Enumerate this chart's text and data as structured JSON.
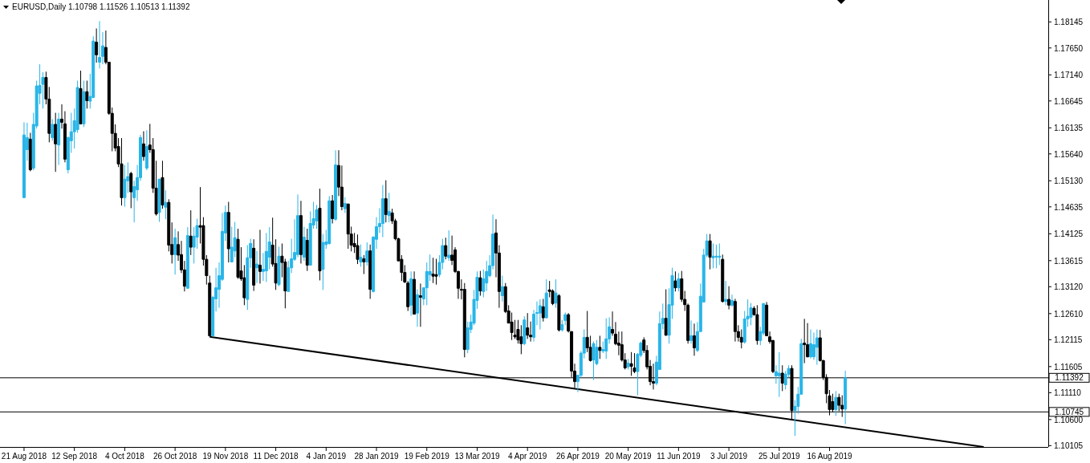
{
  "chart_data": {
    "type": "candlestick",
    "title": "EURUSD,Daily  1.10798 1.11526 1.10513 1.11392",
    "categories": [
      "21 Aug 2018",
      null,
      null,
      null,
      null,
      null,
      null,
      null,
      null,
      null,
      null,
      null,
      null,
      null,
      null,
      null,
      "12 Sep 2018",
      null,
      null,
      null,
      null,
      null,
      null,
      null,
      null,
      null,
      null,
      null,
      null,
      null,
      null,
      null,
      "4 Oct 2018",
      null,
      null,
      null,
      null,
      null,
      null,
      null,
      null,
      null,
      null,
      null,
      null,
      null,
      null,
      null,
      "26 Oct 2018",
      null,
      null,
      null,
      null,
      null,
      null,
      null,
      null,
      null,
      null,
      null,
      null,
      null,
      null,
      null,
      "19 Nov 2018",
      null,
      null,
      null,
      null,
      null,
      null,
      null,
      null,
      null,
      null,
      null,
      null,
      null,
      null,
      null,
      "11 Dec 2018",
      null,
      null,
      null,
      null,
      null,
      null,
      null,
      null,
      null,
      null,
      null,
      null,
      null,
      null,
      null,
      "4 Jan 2019",
      null,
      null,
      null,
      null,
      null,
      null,
      null,
      null,
      null,
      null,
      null,
      null,
      null,
      null,
      null,
      "28 Jan 2019",
      null,
      null,
      null,
      null,
      null,
      null,
      null,
      null,
      null,
      null,
      null,
      null,
      null,
      null,
      null,
      "19 Feb 2019",
      null,
      null,
      null,
      null,
      null,
      null,
      null,
      null,
      null,
      null,
      null,
      null,
      null,
      null,
      null,
      "13 Mar 2019",
      null,
      null,
      null,
      null,
      null,
      null,
      null,
      null,
      null,
      null,
      null,
      null,
      null,
      null,
      null,
      "4 Apr 2019",
      null,
      null,
      null,
      null,
      null,
      null,
      null,
      null,
      null,
      null,
      null,
      null,
      null,
      null,
      null,
      "26 Apr 2019",
      null,
      null,
      null,
      null,
      null,
      null,
      null,
      null,
      null,
      null,
      null,
      null,
      null,
      null,
      null,
      "20 May 2019",
      null,
      null,
      null,
      null,
      null,
      null,
      null,
      null,
      null,
      null,
      null,
      null,
      null,
      null,
      null,
      "11 Jun 2019",
      null,
      null,
      null,
      null,
      null,
      null,
      null,
      null,
      null,
      null,
      null,
      null,
      null,
      null,
      null,
      "3 Jul 2019",
      null,
      null,
      null,
      null,
      null,
      null,
      null,
      null,
      null,
      null,
      null,
      null,
      null,
      null,
      null,
      "25 Jul 2019",
      null,
      null,
      null,
      null,
      null,
      null,
      null,
      null,
      null,
      null,
      null,
      null,
      null,
      null,
      null,
      "16 Aug 2019",
      null,
      null,
      null,
      null,
      null,
      null,
      null,
      null,
      null,
      null,
      null,
      null,
      null,
      null,
      null,
      null,
      null,
      null,
      null,
      null,
      null,
      null,
      null,
      null,
      null,
      null,
      null,
      null,
      null,
      null,
      null,
      null,
      null,
      null,
      null,
      null,
      null,
      null,
      null,
      null,
      null,
      null,
      null,
      null,
      null,
      null,
      null,
      null,
      null,
      null,
      null,
      null,
      null,
      null,
      null,
      null,
      null,
      null,
      null,
      null,
      null,
      null,
      null,
      null,
      null,
      null,
      null,
      null,
      null
    ],
    "ohlc": [
      [
        1.1481,
        1.1624,
        1.1481,
        1.16
      ],
      [
        1.1572,
        1.1623,
        1.1551,
        1.1595
      ],
      [
        1.1592,
        1.1604,
        1.1531,
        1.1534
      ],
      [
        1.1537,
        1.1642,
        1.1533,
        1.162
      ],
      [
        1.1617,
        1.1703,
        1.1612,
        1.1693
      ],
      [
        1.1679,
        1.1734,
        1.1658,
        1.1694
      ],
      [
        1.1696,
        1.1719,
        1.165,
        1.1709
      ],
      [
        1.1709,
        1.172,
        1.1658,
        1.1668
      ],
      [
        1.1668,
        1.1691,
        1.1586,
        1.1603
      ],
      [
        1.1595,
        1.163,
        1.1589,
        1.162
      ],
      [
        1.162,
        1.1642,
        1.153,
        1.1583
      ],
      [
        1.1581,
        1.1642,
        1.1543,
        1.163
      ],
      [
        1.163,
        1.1658,
        1.1612,
        1.1624
      ],
      [
        1.1621,
        1.1645,
        1.1548,
        1.1554
      ],
      [
        1.1534,
        1.1597,
        1.1527,
        1.1595
      ],
      [
        1.1589,
        1.1642,
        1.1566,
        1.1606
      ],
      [
        1.1606,
        1.165,
        1.1574,
        1.1627
      ],
      [
        1.161,
        1.1703,
        1.1604,
        1.169
      ],
      [
        1.1688,
        1.1722,
        1.162,
        1.1621
      ],
      [
        1.1621,
        1.1703,
        1.1615,
        1.1682
      ],
      [
        1.1682,
        1.1703,
        1.165,
        1.1665
      ],
      [
        1.1664,
        1.1716,
        1.165,
        1.1673
      ],
      [
        1.1671,
        1.1787,
        1.167,
        1.1778
      ],
      [
        1.1776,
        1.1802,
        1.1737,
        1.1752
      ],
      [
        1.1738,
        1.1816,
        1.1726,
        1.1747
      ],
      [
        1.1749,
        1.1795,
        1.1734,
        1.1769
      ],
      [
        1.1766,
        1.1798,
        1.1734,
        1.1738
      ],
      [
        1.1738,
        1.1738,
        1.1638,
        1.1641
      ],
      [
        1.1641,
        1.1652,
        1.1569,
        1.1603
      ],
      [
        1.1603,
        1.162,
        1.1569,
        1.1575
      ],
      [
        1.1578,
        1.1594,
        1.1539,
        1.1545
      ],
      [
        1.1545,
        1.1594,
        1.1466,
        1.1481
      ],
      [
        1.1481,
        1.1543,
        1.1464,
        1.1516
      ],
      [
        1.1513,
        1.1548,
        1.149,
        1.1521
      ],
      [
        1.1527,
        1.153,
        1.1461,
        1.1492
      ],
      [
        1.1481,
        1.1513,
        1.1434,
        1.1502
      ],
      [
        1.1496,
        1.1543,
        1.1475,
        1.1519
      ],
      [
        1.1519,
        1.16,
        1.1513,
        1.1595
      ],
      [
        1.1583,
        1.1607,
        1.1551,
        1.1559
      ],
      [
        1.1537,
        1.1609,
        1.1533,
        1.1578
      ],
      [
        1.1581,
        1.1621,
        1.1566,
        1.1572
      ],
      [
        1.1572,
        1.1594,
        1.149,
        1.1499
      ],
      [
        1.1499,
        1.1551,
        1.1447,
        1.145
      ],
      [
        1.1453,
        1.1517,
        1.1435,
        1.1516
      ],
      [
        1.1519,
        1.1551,
        1.146,
        1.1467
      ],
      [
        1.1463,
        1.1495,
        1.144,
        1.1472
      ],
      [
        1.1472,
        1.1478,
        1.1379,
        1.1391
      ],
      [
        1.1392,
        1.1434,
        1.1356,
        1.1373
      ],
      [
        1.1373,
        1.1422,
        1.1335,
        1.1405
      ],
      [
        1.1392,
        1.1417,
        1.1361,
        1.1372
      ],
      [
        1.1373,
        1.1399,
        1.1338,
        1.1344
      ],
      [
        1.1344,
        1.1361,
        1.1303,
        1.1313
      ],
      [
        1.1309,
        1.1425,
        1.1309,
        1.1409
      ],
      [
        1.1408,
        1.1457,
        1.1372,
        1.1387
      ],
      [
        1.1387,
        1.1425,
        1.1356,
        1.1408
      ],
      [
        1.1406,
        1.1441,
        1.1384,
        1.1428
      ],
      [
        1.1428,
        1.1501,
        1.1394,
        1.1425
      ],
      [
        1.1428,
        1.1444,
        1.1352,
        1.1364
      ],
      [
        1.1364,
        1.1372,
        1.1316,
        1.1333
      ],
      [
        1.1319,
        1.1333,
        1.1217,
        1.1219
      ],
      [
        1.1219,
        1.1295,
        1.1217,
        1.1292
      ],
      [
        1.1289,
        1.1348,
        1.1265,
        1.131
      ],
      [
        1.1307,
        1.1358,
        1.1272,
        1.1333
      ],
      [
        1.1326,
        1.1452,
        1.1323,
        1.1417
      ],
      [
        1.1414,
        1.1466,
        1.1399,
        1.1453
      ],
      [
        1.1453,
        1.1473,
        1.1358,
        1.1384
      ],
      [
        1.1359,
        1.1426,
        1.1359,
        1.1387
      ],
      [
        1.138,
        1.1435,
        1.1368,
        1.1405
      ],
      [
        1.1402,
        1.1422,
        1.1327,
        1.133
      ],
      [
        1.1342,
        1.1387,
        1.1323,
        1.1327
      ],
      [
        1.1329,
        1.1353,
        1.1277,
        1.1291
      ],
      [
        1.1288,
        1.1391,
        1.1268,
        1.1367
      ],
      [
        1.1367,
        1.1403,
        1.1348,
        1.1394
      ],
      [
        1.1385,
        1.1402,
        1.1304,
        1.1315
      ],
      [
        1.1348,
        1.138,
        1.1319,
        1.1355
      ],
      [
        1.1353,
        1.142,
        1.1318,
        1.1341
      ],
      [
        1.1341,
        1.1376,
        1.1323,
        1.1345
      ],
      [
        1.1342,
        1.1414,
        1.1321,
        1.1379
      ],
      [
        1.1368,
        1.1425,
        1.1345,
        1.1397
      ],
      [
        1.1391,
        1.1443,
        1.135,
        1.1355
      ],
      [
        1.1356,
        1.1402,
        1.1306,
        1.1319
      ],
      [
        1.1316,
        1.1388,
        1.1313,
        1.137
      ],
      [
        1.137,
        1.1394,
        1.133,
        1.1358
      ],
      [
        1.1359,
        1.1365,
        1.1271,
        1.1304
      ],
      [
        1.1303,
        1.1361,
        1.1303,
        1.1348
      ],
      [
        1.1348,
        1.1403,
        1.1338,
        1.1365
      ],
      [
        1.1364,
        1.144,
        1.1361,
        1.1377
      ],
      [
        1.1373,
        1.1487,
        1.1368,
        1.1447
      ],
      [
        1.1447,
        1.1475,
        1.1356,
        1.1373
      ],
      [
        1.1368,
        1.1426,
        1.1361,
        1.1406
      ],
      [
        1.14,
        1.1422,
        1.1342,
        1.1353
      ],
      [
        1.1353,
        1.1455,
        1.1353,
        1.1432
      ],
      [
        1.1429,
        1.1473,
        1.1422,
        1.1441
      ],
      [
        1.1437,
        1.1467,
        1.1422,
        1.1458
      ],
      [
        1.1461,
        1.1498,
        1.1324,
        1.1342
      ],
      [
        1.1345,
        1.1412,
        1.1306,
        1.1396
      ],
      [
        1.1392,
        1.142,
        1.1384,
        1.1397
      ],
      [
        1.1394,
        1.1484,
        1.1392,
        1.1475
      ],
      [
        1.1475,
        1.1486,
        1.1432,
        1.1441
      ],
      [
        1.144,
        1.1571,
        1.1437,
        1.1543
      ],
      [
        1.1542,
        1.1571,
        1.1484,
        1.1501
      ],
      [
        1.1501,
        1.1542,
        1.1457,
        1.1464
      ],
      [
        1.146,
        1.1482,
        1.1452,
        1.147
      ],
      [
        1.1469,
        1.1469,
        1.1384,
        1.1412
      ],
      [
        1.1412,
        1.1426,
        1.1379,
        1.1391
      ],
      [
        1.1394,
        1.1414,
        1.1376,
        1.1388
      ],
      [
        1.139,
        1.1411,
        1.1355,
        1.1364
      ],
      [
        1.1359,
        1.1392,
        1.135,
        1.1368
      ],
      [
        1.1365,
        1.1372,
        1.1336,
        1.1359
      ],
      [
        1.1359,
        1.1396,
        1.1352,
        1.138
      ],
      [
        1.138,
        1.1392,
        1.1289,
        1.1307
      ],
      [
        1.1303,
        1.1408,
        1.1301,
        1.1406
      ],
      [
        1.1402,
        1.1444,
        1.1384,
        1.1426
      ],
      [
        1.1426,
        1.1461,
        1.1414,
        1.1432
      ],
      [
        1.1432,
        1.1505,
        1.1406,
        1.1479
      ],
      [
        1.1479,
        1.1514,
        1.1434,
        1.1449
      ],
      [
        1.1447,
        1.149,
        1.1434,
        1.1455
      ],
      [
        1.1452,
        1.146,
        1.1431,
        1.1437
      ],
      [
        1.1437,
        1.1441,
        1.14,
        1.1403
      ],
      [
        1.1403,
        1.1405,
        1.1361,
        1.1361
      ],
      [
        1.1364,
        1.1372,
        1.1323,
        1.1339
      ],
      [
        1.1339,
        1.1353,
        1.1319,
        1.1321
      ],
      [
        1.1319,
        1.1323,
        1.1266,
        1.1274
      ],
      [
        1.1277,
        1.1341,
        1.1257,
        1.1327
      ],
      [
        1.1326,
        1.1341,
        1.126,
        1.126
      ],
      [
        1.1262,
        1.1307,
        1.1236,
        1.1297
      ],
      [
        1.1295,
        1.1318,
        1.1236,
        1.1292
      ],
      [
        1.1289,
        1.131,
        1.1277,
        1.131
      ],
      [
        1.131,
        1.1358,
        1.1277,
        1.1341
      ],
      [
        1.1335,
        1.1373,
        1.1323,
        1.1341
      ],
      [
        1.1336,
        1.1367,
        1.1319,
        1.1332
      ],
      [
        1.1335,
        1.1365,
        1.1316,
        1.1332
      ],
      [
        1.1335,
        1.1372,
        1.133,
        1.1358
      ],
      [
        1.1358,
        1.1403,
        1.1345,
        1.139
      ],
      [
        1.139,
        1.1405,
        1.1364,
        1.137
      ],
      [
        1.1367,
        1.1419,
        1.1361,
        1.1372
      ],
      [
        1.1372,
        1.1409,
        1.1353,
        1.1362
      ],
      [
        1.1382,
        1.1387,
        1.1338,
        1.1341
      ],
      [
        1.1341,
        1.1342,
        1.1289,
        1.1309
      ],
      [
        1.1307,
        1.1326,
        1.1288,
        1.1306
      ],
      [
        1.1307,
        1.1319,
        1.1178,
        1.1193
      ],
      [
        1.1193,
        1.1246,
        1.1186,
        1.1234
      ],
      [
        1.1231,
        1.1259,
        1.1224,
        1.1245
      ],
      [
        1.1243,
        1.1306,
        1.1239,
        1.1288
      ],
      [
        1.1286,
        1.1341,
        1.127,
        1.133
      ],
      [
        1.1329,
        1.1342,
        1.1295,
        1.1304
      ],
      [
        1.1303,
        1.1345,
        1.1292,
        1.1327
      ],
      [
        1.1319,
        1.1361,
        1.1304,
        1.1341
      ],
      [
        1.1333,
        1.1372,
        1.133,
        1.1352
      ],
      [
        1.1352,
        1.1449,
        1.1345,
        1.1412
      ],
      [
        1.1414,
        1.144,
        1.133,
        1.1376
      ],
      [
        1.1376,
        1.1391,
        1.1272,
        1.1303
      ],
      [
        1.1295,
        1.1333,
        1.1284,
        1.1312
      ],
      [
        1.1312,
        1.1319,
        1.1262,
        1.1265
      ],
      [
        1.1266,
        1.1277,
        1.1243,
        1.1243
      ],
      [
        1.1245,
        1.1263,
        1.1211,
        1.1225
      ],
      [
        1.122,
        1.1249,
        1.1213,
        1.1217
      ],
      [
        1.1231,
        1.1249,
        1.1204,
        1.1211
      ],
      [
        1.1217,
        1.1239,
        1.1184,
        1.1204
      ],
      [
        1.1204,
        1.1256,
        1.1201,
        1.1249
      ],
      [
        1.1234,
        1.1262,
        1.1213,
        1.122
      ],
      [
        1.122,
        1.1246,
        1.1208,
        1.1217
      ],
      [
        1.1216,
        1.1268,
        1.1208,
        1.126
      ],
      [
        1.1262,
        1.1284,
        1.1239,
        1.1263
      ],
      [
        1.1262,
        1.1288,
        1.1231,
        1.1276
      ],
      [
        1.1274,
        1.1289,
        1.1246,
        1.1253
      ],
      [
        1.1253,
        1.1326,
        1.1252,
        1.13
      ],
      [
        1.1306,
        1.1323,
        1.1292,
        1.1303
      ],
      [
        1.1304,
        1.1307,
        1.1277,
        1.128
      ],
      [
        1.1281,
        1.1326,
        1.1272,
        1.13
      ],
      [
        1.1295,
        1.1298,
        1.1227,
        1.123
      ],
      [
        1.123,
        1.1249,
        1.1227,
        1.124
      ],
      [
        1.1248,
        1.1263,
        1.1239,
        1.1259
      ],
      [
        1.1259,
        1.1262,
        1.1225,
        1.1228
      ],
      [
        1.1227,
        1.1227,
        1.114,
        1.1152
      ],
      [
        1.1152,
        1.1166,
        1.112,
        1.1132
      ],
      [
        1.1132,
        1.1144,
        1.1112,
        1.1144
      ],
      [
        1.1144,
        1.119,
        1.114,
        1.1186
      ],
      [
        1.1186,
        1.1231,
        1.1176,
        1.1216
      ],
      [
        1.1216,
        1.1266,
        1.1188,
        1.1196
      ],
      [
        1.1197,
        1.1219,
        1.117,
        1.1172
      ],
      [
        1.1173,
        1.1208,
        1.1135,
        1.1204
      ],
      [
        1.1166,
        1.1211,
        1.1163,
        1.1197
      ],
      [
        1.1197,
        1.1219,
        1.1175,
        1.1191
      ],
      [
        1.119,
        1.1208,
        1.1186,
        1.1193
      ],
      [
        1.119,
        1.1252,
        1.1175,
        1.1213
      ],
      [
        1.1213,
        1.1254,
        1.1204,
        1.1236
      ],
      [
        1.1231,
        1.1265,
        1.1219,
        1.1224
      ],
      [
        1.1222,
        1.1245,
        1.1201,
        1.1204
      ],
      [
        1.1205,
        1.1227,
        1.1182,
        1.1201
      ],
      [
        1.1202,
        1.1227,
        1.117,
        1.1173
      ],
      [
        1.1173,
        1.1186,
        1.1155,
        1.1158
      ],
      [
        1.116,
        1.1175,
        1.1155,
        1.1167
      ],
      [
        1.1166,
        1.1188,
        1.1143,
        1.1161
      ],
      [
        1.1158,
        1.1186,
        1.1148,
        1.1151
      ],
      [
        1.1151,
        1.1186,
        1.1106,
        1.1184
      ],
      [
        1.1182,
        1.1208,
        1.1178,
        1.1205
      ],
      [
        1.1211,
        1.1216,
        1.1186,
        1.1191
      ],
      [
        1.1191,
        1.1201,
        1.1155,
        1.116
      ],
      [
        1.1161,
        1.1173,
        1.1125,
        1.1132
      ],
      [
        1.1132,
        1.1166,
        1.1117,
        1.1129
      ],
      [
        1.1129,
        1.1181,
        1.1125,
        1.1169
      ],
      [
        1.1155,
        1.1265,
        1.1155,
        1.1242
      ],
      [
        1.1242,
        1.128,
        1.1231,
        1.1252
      ],
      [
        1.1252,
        1.1307,
        1.1219,
        1.122
      ],
      [
        1.122,
        1.1309,
        1.1204,
        1.1278
      ],
      [
        1.1277,
        1.1348,
        1.1251,
        1.1333
      ],
      [
        1.1323,
        1.1341,
        1.1303,
        1.131
      ],
      [
        1.131,
        1.1338,
        1.1303,
        1.1327
      ],
      [
        1.1327,
        1.1342,
        1.1283,
        1.1288
      ],
      [
        1.1288,
        1.1304,
        1.1266,
        1.1278
      ],
      [
        1.1277,
        1.128,
        1.1204,
        1.121
      ],
      [
        1.121,
        1.1248,
        1.1204,
        1.1219
      ],
      [
        1.1219,
        1.1242,
        1.1181,
        1.1196
      ],
      [
        1.1191,
        1.1245,
        1.1188,
        1.1227
      ],
      [
        1.1227,
        1.1318,
        1.1227,
        1.1294
      ],
      [
        1.1283,
        1.1384,
        1.1283,
        1.1372
      ],
      [
        1.1372,
        1.1412,
        1.1368,
        1.1399
      ],
      [
        1.1399,
        1.1412,
        1.1345,
        1.1368
      ],
      [
        1.1367,
        1.1394,
        1.1347,
        1.137
      ],
      [
        1.1368,
        1.1392,
        1.1347,
        1.137
      ],
      [
        1.1368,
        1.1394,
        1.1353,
        1.137
      ],
      [
        1.1364,
        1.1373,
        1.1282,
        1.1284
      ],
      [
        1.1284,
        1.1323,
        1.1277,
        1.1288
      ],
      [
        1.1288,
        1.1313,
        1.1269,
        1.1277
      ],
      [
        1.1277,
        1.1297,
        1.1274,
        1.1286
      ],
      [
        1.1284,
        1.1289,
        1.1208,
        1.1227
      ],
      [
        1.1227,
        1.1239,
        1.1208,
        1.1216
      ],
      [
        1.1216,
        1.1231,
        1.1195,
        1.1207
      ],
      [
        1.1207,
        1.1266,
        1.1204,
        1.1251
      ],
      [
        1.1251,
        1.1288,
        1.1236,
        1.1256
      ],
      [
        1.1254,
        1.1281,
        1.1239,
        1.1272
      ],
      [
        1.1271,
        1.1275,
        1.1257,
        1.1259
      ],
      [
        1.1259,
        1.1277,
        1.1202,
        1.121
      ],
      [
        1.121,
        1.1236,
        1.1201,
        1.1227
      ],
      [
        1.1224,
        1.1281,
        1.122,
        1.128
      ],
      [
        1.1277,
        1.1283,
        1.1219,
        1.1219
      ],
      [
        1.1217,
        1.1227,
        1.1204,
        1.1208
      ],
      [
        1.121,
        1.1211,
        1.1148,
        1.1151
      ],
      [
        1.1143,
        1.1163,
        1.1128,
        1.1151
      ],
      [
        1.1143,
        1.1188,
        1.1103,
        1.1148
      ],
      [
        1.1148,
        1.1163,
        1.1114,
        1.1129
      ],
      [
        1.1126,
        1.1152,
        1.1117,
        1.1146
      ],
      [
        1.1146,
        1.1163,
        1.114,
        1.1157
      ],
      [
        1.1157,
        1.1163,
        1.1061,
        1.1077
      ],
      [
        1.1077,
        1.1097,
        1.1029,
        1.1085
      ],
      [
        1.1085,
        1.1122,
        1.1071,
        1.1108
      ],
      [
        1.1108,
        1.1213,
        1.1108,
        1.1204
      ],
      [
        1.1205,
        1.1251,
        1.1167,
        1.1202
      ],
      [
        1.1202,
        1.1243,
        1.1178,
        1.1179
      ],
      [
        1.1179,
        1.1231,
        1.1176,
        1.1204
      ],
      [
        1.1179,
        1.1225,
        1.1173,
        1.1202
      ],
      [
        1.1197,
        1.1231,
        1.1164,
        1.1215
      ],
      [
        1.1215,
        1.123,
        1.117,
        1.1172
      ],
      [
        1.1172,
        1.1173,
        1.1135,
        1.114
      ],
      [
        1.114,
        1.1146,
        1.1091,
        1.1109
      ],
      [
        1.1105,
        1.1116,
        1.1068,
        1.1079
      ],
      [
        1.1094,
        1.1109,
        1.1074,
        1.1079
      ],
      [
        1.1079,
        1.1114,
        1.1067,
        1.1102
      ],
      [
        1.1102,
        1.1109,
        1.1076,
        1.1087
      ],
      [
        1.1087,
        1.1106,
        1.1065,
        1.108
      ],
      [
        1.10798,
        1.11526,
        1.10513,
        1.11392
      ],
      null,
      null,
      null,
      null,
      null,
      null,
      null,
      null,
      null,
      null,
      null,
      null,
      null,
      null,
      null,
      null,
      null,
      null,
      null,
      null,
      null,
      null,
      null,
      null,
      null,
      null,
      null,
      null,
      null,
      null,
      null,
      null,
      null,
      null,
      null,
      null,
      null,
      null,
      null,
      null,
      null,
      null,
      null,
      null,
      null,
      null,
      null,
      null,
      null,
      null,
      null,
      null,
      null,
      null,
      null,
      null,
      null,
      null,
      null,
      null,
      null,
      null,
      null,
      null
    ],
    "colors": [
      "#29b5e8",
      "#29b5e8",
      "#000000",
      "#29b5e8",
      "#29b5e8",
      "#29b5e8",
      "#29b5e8",
      "#000000",
      "#000000",
      "#29b5e8",
      "#000000",
      "#29b5e8",
      "#000000",
      "#000000",
      "#29b5e8",
      "#29b5e8",
      "#29b5e8",
      "#29b5e8",
      "#000000",
      "#29b5e8",
      "#000000",
      "#29b5e8",
      "#29b5e8",
      "#000000",
      "#29b5e8",
      "#29b5e8",
      "#000000",
      "#000000",
      "#000000",
      "#000000",
      "#000000",
      "#000000",
      "#29b5e8",
      "#29b5e8",
      "#000000",
      "#29b5e8",
      "#29b5e8",
      "#29b5e8",
      "#000000",
      "#29b5e8",
      "#000000",
      "#000000",
      "#000000",
      "#29b5e8",
      "#000000",
      "#29b5e8",
      "#000000",
      "#000000",
      "#29b5e8",
      "#000000",
      "#000000",
      "#000000",
      "#29b5e8",
      "#000000",
      "#29b5e8",
      "#29b5e8",
      "#000000",
      "#000000",
      "#000000",
      "#000000",
      "#29b5e8",
      "#29b5e8",
      "#29b5e8",
      "#29b5e8",
      "#29b5e8",
      "#000000",
      "#29b5e8",
      "#29b5e8",
      "#000000",
      "#000000",
      "#000000",
      "#29b5e8",
      "#29b5e8",
      "#000000",
      "#29b5e8",
      "#000000",
      "#29b5e8",
      "#29b5e8",
      "#29b5e8",
      "#000000",
      "#000000",
      "#29b5e8",
      "#000000",
      "#000000",
      "#29b5e8",
      "#29b5e8",
      "#29b5e8",
      "#29b5e8",
      "#000000",
      "#29b5e8",
      "#000000",
      "#29b5e8",
      "#29b5e8",
      "#29b5e8",
      "#000000",
      "#29b5e8",
      "#29b5e8",
      "#29b5e8",
      "#000000",
      "#29b5e8",
      "#000000",
      "#000000",
      "#29b5e8",
      "#000000",
      "#000000",
      "#000000",
      "#000000",
      "#29b5e8",
      "#000000",
      "#29b5e8",
      "#000000",
      "#29b5e8",
      "#29b5e8",
      "#29b5e8",
      "#29b5e8",
      "#000000",
      "#29b5e8",
      "#000000",
      "#000000",
      "#000000",
      "#000000",
      "#000000",
      "#000000",
      "#29b5e8",
      "#000000",
      "#29b5e8",
      "#000000",
      "#29b5e8",
      "#29b5e8",
      "#29b5e8",
      "#000000",
      "#000000",
      "#29b5e8",
      "#29b5e8",
      "#000000",
      "#29b5e8",
      "#000000",
      "#000000",
      "#000000",
      "#000000",
      "#000000",
      "#29b5e8",
      "#29b5e8",
      "#29b5e8",
      "#29b5e8",
      "#000000",
      "#29b5e8",
      "#29b5e8",
      "#29b5e8",
      "#29b5e8",
      "#000000",
      "#000000",
      "#29b5e8",
      "#000000",
      "#000000",
      "#000000",
      "#000000",
      "#000000",
      "#000000",
      "#29b5e8",
      "#000000",
      "#000000",
      "#29b5e8",
      "#29b5e8",
      "#29b5e8",
      "#000000",
      "#29b5e8",
      "#000000",
      "#000000",
      "#29b5e8",
      "#000000",
      "#29b5e8",
      "#29b5e8",
      "#000000",
      "#000000",
      "#000000",
      "#29b5e8",
      "#29b5e8",
      "#29b5e8",
      "#000000",
      "#000000",
      "#29b5e8",
      "#29b5e8",
      "#000000",
      "#29b5e8",
      "#29b5e8",
      "#29b5e8",
      "#000000",
      "#000000",
      "#000000",
      "#000000",
      "#000000",
      "#29b5e8",
      "#000000",
      "#000000",
      "#29b5e8",
      "#29b5e8",
      "#000000",
      "#000000",
      "#000000",
      "#000000",
      "#29b5e8",
      "#29b5e8",
      "#29b5e8",
      "#000000",
      "#29b5e8",
      "#29b5e8",
      "#000000",
      "#29b5e8",
      "#000000",
      "#000000",
      "#000000",
      "#29b5e8",
      "#000000",
      "#29b5e8",
      "#29b5e8",
      "#29b5e8",
      "#29b5e8",
      "#000000",
      "#29b5e8",
      "#29b5e8",
      "#29b5e8",
      "#000000",
      "#29b5e8",
      "#000000",
      "#29b5e8",
      "#000000",
      "#000000",
      "#000000",
      "#29b5e8",
      "#29b5e8",
      "#29b5e8",
      "#000000",
      "#000000",
      "#29b5e8",
      "#29b5e8",
      "#000000",
      "#000000",
      "#000000",
      "#29b5e8",
      "#29b5e8",
      "#000000",
      "#29b5e8",
      "#29b5e8",
      "#000000",
      "#29b5e8",
      "#29b5e8",
      "#29b5e8",
      "#000000",
      "#000000",
      "#29b5e8",
      "#29b5e8",
      "#29b5e8",
      "#000000",
      "#000000",
      "#000000",
      "#000000",
      "#000000",
      "#29b5e8",
      "#000000",
      "#000000",
      "#29b5e8",
      null,
      null,
      null,
      null,
      null,
      null,
      null,
      null,
      null,
      null,
      null,
      null,
      null,
      null,
      null,
      null,
      null,
      null,
      null,
      null,
      null,
      null,
      null,
      null,
      null,
      null,
      null,
      null,
      null,
      null,
      null,
      null,
      null,
      null,
      null,
      null,
      null,
      null,
      null,
      null,
      null,
      null,
      null,
      null,
      null,
      null,
      null,
      null,
      null,
      null,
      null,
      null,
      null,
      null,
      null,
      null,
      null,
      null,
      null,
      null,
      null,
      null,
      null,
      null
    ],
    "series": [
      {
        "type": "line",
        "color": "#000000",
        "values": [
          null,
          null,
          null,
          null,
          null,
          null,
          null,
          null,
          null,
          null,
          null,
          null,
          null,
          null,
          null,
          null,
          null,
          null,
          null,
          null,
          null,
          null,
          null,
          null,
          null,
          null,
          null,
          null,
          null,
          null,
          null,
          null,
          null,
          null,
          null,
          null,
          null,
          null,
          null,
          null,
          null,
          null,
          null,
          null,
          null,
          null,
          null,
          null,
          null,
          null,
          null,
          null,
          null,
          null,
          null,
          null,
          null,
          null,
          null,
          1.1217,
          null,
          null,
          null,
          null,
          null,
          null,
          null,
          null,
          null,
          null,
          null,
          null,
          null,
          null,
          null,
          null,
          null,
          null,
          null,
          null,
          null,
          null,
          null,
          null,
          null,
          null,
          null,
          null,
          null,
          null,
          null,
          null,
          null,
          null,
          null,
          null,
          null,
          null,
          null,
          null,
          null,
          null,
          null,
          null,
          null,
          null,
          null,
          null,
          null,
          null,
          null,
          null,
          null,
          null,
          null,
          null,
          null,
          null,
          null,
          null,
          null,
          null,
          null,
          null,
          null,
          null,
          null,
          null,
          null,
          null,
          null,
          null,
          null,
          null,
          null,
          null,
          null,
          null,
          null,
          null,
          null,
          null,
          null,
          null,
          null,
          null,
          null,
          null,
          null,
          null,
          null,
          null,
          null,
          null,
          null,
          null,
          null,
          null,
          null,
          null,
          null,
          null,
          null,
          null,
          null,
          null,
          null,
          null,
          null,
          null,
          null,
          null,
          null,
          null,
          null,
          null,
          null,
          null,
          null,
          null,
          null,
          null,
          null,
          null,
          null,
          null,
          null,
          null,
          null,
          null,
          null,
          null,
          null,
          null,
          null,
          null,
          null,
          null,
          null,
          null,
          null,
          null,
          null,
          null,
          null,
          null,
          null,
          null,
          null,
          null,
          null,
          null,
          null,
          null,
          null,
          null,
          null,
          null,
          null,
          null,
          null,
          null,
          null,
          null,
          null,
          null,
          null,
          null,
          null,
          null,
          null,
          null,
          null,
          null,
          null,
          null,
          null,
          null,
          null,
          null,
          null,
          null,
          null,
          null,
          null,
          null,
          null,
          null,
          null,
          null,
          null,
          null,
          null,
          null,
          null,
          null,
          null,
          null,
          null,
          null,
          null,
          null,
          null,
          null,
          null,
          null,
          null,
          null,
          null,
          null,
          null,
          null,
          null,
          null,
          null,
          null,
          null,
          null,
          null,
          null,
          null,
          null,
          null,
          null,
          null,
          null,
          null,
          null,
          null,
          null,
          null,
          null,
          null,
          null,
          null,
          null,
          null,
          null,
          null,
          null,
          null,
          null,
          null,
          null,
          null,
          1.1008,
          null,
          null,
          null,
          null,
          null,
          null,
          null,
          null,
          null,
          null,
          null,
          null,
          null,
          null,
          null,
          null,
          null,
          null,
          null,
          null
        ]
      }
    ],
    "ylim": [
      1.1008,
      1.1856
    ],
    "yticks": [
      {
        "value": 1.18145,
        "label": "1.18145"
      },
      {
        "value": 1.1765,
        "label": "1.17650"
      },
      {
        "value": 1.1714,
        "label": "1.17140"
      },
      {
        "value": 1.16645,
        "label": "1.16645"
      },
      {
        "value": 1.16135,
        "label": "1.16135"
      },
      {
        "value": 1.1564,
        "label": "1.15640"
      },
      {
        "value": 1.1513,
        "label": "1.15130"
      },
      {
        "value": 1.14635,
        "label": "1.14635"
      },
      {
        "value": 1.14125,
        "label": "1.14125"
      },
      {
        "value": 1.13615,
        "label": "1.13615"
      },
      {
        "value": 1.1312,
        "label": "1.13120"
      },
      {
        "value": 1.1261,
        "label": "1.12610"
      },
      {
        "value": 1.12115,
        "label": "1.12115"
      },
      {
        "value": 1.11605,
        "label": "1.11605"
      },
      {
        "value": 1.1111,
        "label": "1.11110"
      },
      {
        "value": 1.106,
        "label": "1.10600"
      },
      {
        "value": 1.10105,
        "label": "1.10105"
      }
    ],
    "ref_lines": [
      {
        "axis": "y",
        "value": 1.11392,
        "label": "1.11392",
        "color": "#000000"
      },
      {
        "axis": "y",
        "value": 1.10745,
        "label": "1.10745",
        "color": "#000000"
      }
    ]
  }
}
